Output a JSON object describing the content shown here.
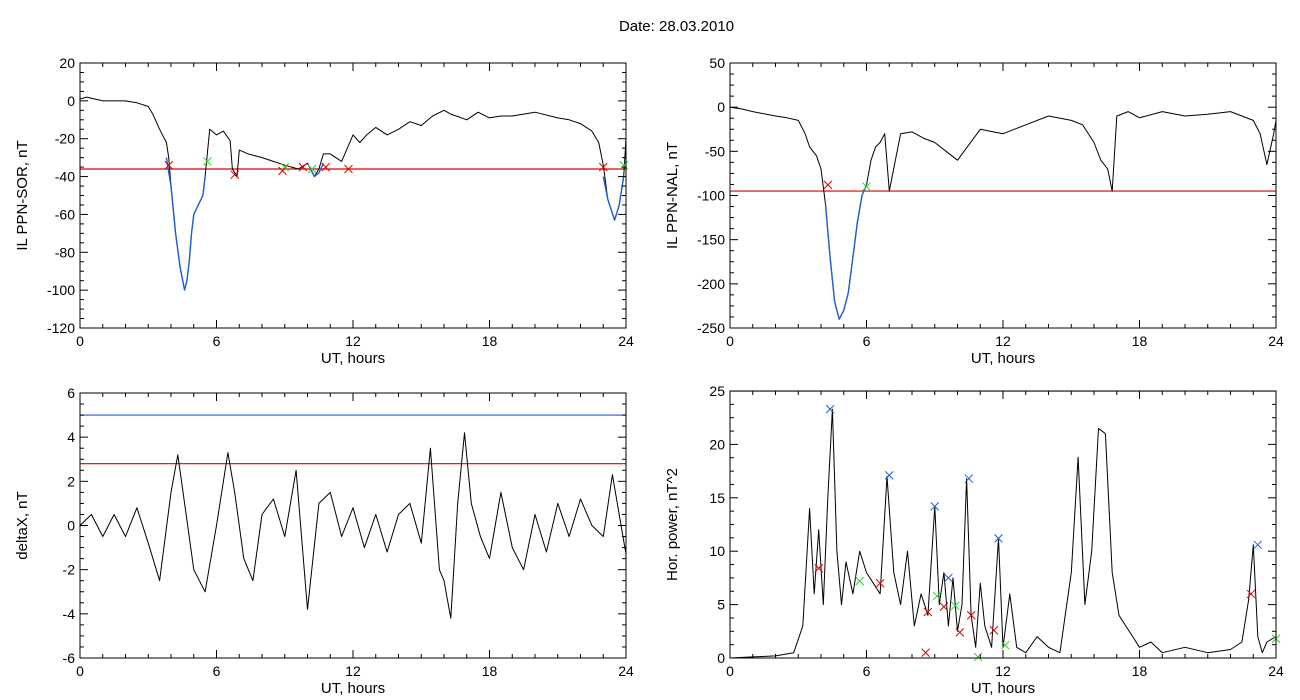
{
  "figure": {
    "title": "Date:  28.03.2010"
  },
  "chart_data": [
    {
      "type": "line",
      "ylabel": "IL PPN-SOR, nT",
      "xlabel": "UT, hours",
      "xlim": [
        0,
        24
      ],
      "ylim": [
        -120,
        20
      ],
      "xticks": [
        "0",
        "6",
        "12",
        "18",
        "24"
      ],
      "yticks": [
        "20",
        "0",
        "-20",
        "-40",
        "-60",
        "-80",
        "-100",
        "-120"
      ],
      "grid": false,
      "series": [
        {
          "color": "#000000",
          "x": [
            0,
            0.3,
            1,
            2,
            2.5,
            3,
            3.2,
            3.5,
            3.8,
            3.9,
            4.0,
            4.2,
            4.4,
            4.6,
            4.7,
            4.8,
            4.9,
            5.0,
            5.2,
            5.4,
            5.5,
            5.7,
            6.0,
            6.3,
            6.6,
            6.7,
            6.9,
            7.0,
            7.4,
            8,
            8.5,
            9,
            9.3,
            9.6,
            10,
            10.3,
            10.5,
            10.7,
            11,
            11.5,
            12,
            12.3,
            12.6,
            13,
            13.5,
            14,
            14.5,
            15,
            15.5,
            16,
            16.3,
            17,
            17.5,
            18,
            18.5,
            19,
            20,
            21,
            21.5,
            22,
            22.5,
            22.8,
            23.0,
            23.2,
            23.5,
            23.7,
            23.9,
            24
          ],
          "y": [
            1,
            2,
            0,
            0,
            -1,
            -3,
            -7,
            -15,
            -22,
            -30,
            -45,
            -70,
            -88,
            -100,
            -95,
            -85,
            -70,
            -60,
            -55,
            -50,
            -40,
            -15,
            -18,
            -16,
            -21,
            -36,
            -40,
            -26,
            -28,
            -30,
            -32,
            -34,
            -35,
            -36,
            -33,
            -40,
            -36,
            -28,
            -28,
            -32,
            -18,
            -22,
            -18,
            -14,
            -18,
            -15,
            -11,
            -13,
            -8,
            -5,
            -7,
            -10,
            -6,
            -9,
            -8,
            -8,
            -6,
            -9,
            -10,
            -12,
            -16,
            -22,
            -34,
            -52,
            -63,
            -55,
            -40,
            -20
          ]
        },
        {
          "color": "#1f5fd0",
          "x": [
            3.8,
            4.0,
            4.2,
            4.4,
            4.6,
            4.7,
            4.8,
            4.9,
            5.0,
            5.2,
            5.4,
            5.5
          ],
          "y": [
            -30,
            -45,
            -70,
            -88,
            -100,
            -95,
            -85,
            -70,
            -60,
            -55,
            -50,
            -40
          ]
        },
        {
          "color": "#1f5fd0",
          "x": [
            10.1,
            10.3,
            10.5,
            10.7
          ],
          "y": [
            -35,
            -40,
            -38,
            -33
          ]
        },
        {
          "color": "#1f5fd0",
          "x": [
            23.0,
            23.2,
            23.5,
            23.7,
            23.9
          ],
          "y": [
            -40,
            -52,
            -63,
            -55,
            -40
          ]
        }
      ],
      "hlines": [
        {
          "y": -36,
          "color": "#e00000"
        }
      ],
      "markers": [
        {
          "x": 3.9,
          "y": -34,
          "color": "#e00000"
        },
        {
          "x": 5.6,
          "y": -32,
          "color": "#33cc33"
        },
        {
          "x": 6.8,
          "y": -39,
          "color": "#e00000"
        },
        {
          "x": 8.9,
          "y": -37,
          "color": "#e00000"
        },
        {
          "x": 9.0,
          "y": -35,
          "color": "#33cc33"
        },
        {
          "x": 9.8,
          "y": -35,
          "color": "#e00000"
        },
        {
          "x": 10.2,
          "y": -36,
          "color": "#33cc33"
        },
        {
          "x": 10.8,
          "y": -35,
          "color": "#e00000"
        },
        {
          "x": 11.8,
          "y": -36,
          "color": "#e00000"
        },
        {
          "x": 23.0,
          "y": -35,
          "color": "#e00000"
        },
        {
          "x": 23.9,
          "y": -34,
          "color": "#33cc33"
        }
      ]
    },
    {
      "type": "line",
      "ylabel": "IL PPN-NAL, nT",
      "xlabel": "UT, hours",
      "xlim": [
        0,
        24
      ],
      "ylim": [
        -250,
        50
      ],
      "xticks": [
        "0",
        "6",
        "12",
        "18",
        "24"
      ],
      "yticks": [
        "50",
        "0",
        "-50",
        "-100",
        "-150",
        "-200",
        "-250"
      ],
      "grid": false,
      "series": [
        {
          "color": "#000000",
          "x": [
            0,
            0.5,
            1,
            2,
            2.5,
            3,
            3.3,
            3.5,
            3.8,
            4.0,
            4.2,
            4.4,
            4.6,
            4.8,
            5.0,
            5.2,
            5.4,
            5.6,
            5.8,
            6.0,
            6.2,
            6.4,
            6.6,
            6.8,
            7.0,
            7.5,
            8,
            8.5,
            9,
            9.5,
            10,
            11,
            12,
            13,
            14,
            15,
            15.5,
            16,
            16.3,
            16.6,
            16.8,
            17.0,
            17.5,
            18,
            19,
            20,
            21,
            22,
            22.5,
            23,
            23.3,
            23.6,
            23.9,
            24
          ],
          "y": [
            0,
            -2,
            -5,
            -10,
            -12,
            -15,
            -30,
            -45,
            -55,
            -70,
            -110,
            -170,
            -220,
            -240,
            -230,
            -210,
            -170,
            -130,
            -100,
            -88,
            -60,
            -45,
            -40,
            -30,
            -95,
            -30,
            -28,
            -35,
            -40,
            -50,
            -60,
            -25,
            -30,
            -20,
            -10,
            -15,
            -20,
            -40,
            -60,
            -70,
            -95,
            -10,
            -5,
            -12,
            -5,
            -10,
            -8,
            -5,
            -10,
            -15,
            -30,
            -65,
            -30,
            -15
          ]
        },
        {
          "color": "#1f5fd0",
          "x": [
            4.2,
            4.4,
            4.6,
            4.8,
            5.0,
            5.2,
            5.4,
            5.6,
            5.8,
            6.0
          ],
          "y": [
            -110,
            -170,
            -220,
            -240,
            -230,
            -210,
            -170,
            -130,
            -100,
            -88
          ]
        }
      ],
      "hlines": [
        {
          "y": -95,
          "color": "#e00000"
        }
      ],
      "markers": [
        {
          "x": 4.3,
          "y": -88,
          "color": "#e00000"
        },
        {
          "x": 6.0,
          "y": -90,
          "color": "#33cc33"
        }
      ]
    },
    {
      "type": "line",
      "ylabel": "deltaX, nT",
      "xlabel": "UT, hours",
      "xlim": [
        0,
        24
      ],
      "ylim": [
        -6,
        6
      ],
      "xticks": [
        "0",
        "6",
        "12",
        "18",
        "24"
      ],
      "yticks": [
        "6",
        "4",
        "2",
        "0",
        "-2",
        "-4",
        "-6"
      ],
      "grid": false,
      "series": [
        {
          "color": "#000000",
          "x": [
            0,
            0.5,
            1,
            1.5,
            2,
            2.5,
            3,
            3.5,
            4.0,
            4.3,
            4.6,
            5.0,
            5.5,
            6.0,
            6.5,
            6.8,
            7.2,
            7.6,
            8.0,
            8.5,
            9.0,
            9.5,
            10.0,
            10.5,
            11.0,
            11.5,
            12.0,
            12.5,
            13.0,
            13.5,
            14.0,
            14.5,
            15.0,
            15.4,
            15.8,
            16.0,
            16.3,
            16.6,
            16.9,
            17.2,
            17.6,
            18.0,
            18.5,
            19.0,
            19.5,
            20.0,
            20.5,
            21.0,
            21.5,
            22.0,
            22.5,
            23.0,
            23.4,
            23.7,
            24
          ],
          "y": [
            0,
            0.5,
            -0.5,
            0.5,
            -0.5,
            0.8,
            -0.8,
            -2.5,
            1.5,
            3.2,
            1.0,
            -2.0,
            -3.0,
            0,
            3.3,
            1.5,
            -1.5,
            -2.5,
            0.5,
            1.2,
            -0.5,
            2.5,
            -3.8,
            1.0,
            1.5,
            -0.5,
            0.8,
            -1.0,
            0.5,
            -1.2,
            0.5,
            1.0,
            -0.8,
            3.5,
            -2.0,
            -2.5,
            -4.2,
            1.0,
            4.2,
            1.0,
            -0.5,
            -1.5,
            1.5,
            -1.0,
            -2.0,
            0.5,
            -1.2,
            1.0,
            -0.5,
            1.2,
            0,
            -0.5,
            2.3,
            0.5,
            -1.3
          ]
        }
      ],
      "hlines": [
        {
          "y": 5.0,
          "color": "#1f5fd0"
        },
        {
          "y": 2.8,
          "color": "#e00000"
        }
      ],
      "markers": []
    },
    {
      "type": "line",
      "ylabel": "Hor. power, nT^2",
      "xlabel": "UT, hours",
      "xlim": [
        0,
        24
      ],
      "ylim": [
        0,
        25
      ],
      "xticks": [
        "0",
        "6",
        "12",
        "18",
        "24"
      ],
      "yticks": [
        "25",
        "20",
        "15",
        "10",
        "5",
        "0"
      ],
      "grid": false,
      "series": [
        {
          "color": "#000000",
          "x": [
            0,
            1,
            2,
            2.8,
            3.2,
            3.5,
            3.7,
            3.9,
            4.1,
            4.3,
            4.5,
            4.7,
            4.9,
            5.1,
            5.4,
            5.7,
            6.0,
            6.3,
            6.6,
            6.9,
            7.2,
            7.5,
            7.8,
            8.1,
            8.4,
            8.7,
            9.0,
            9.2,
            9.4,
            9.6,
            9.8,
            10.0,
            10.2,
            10.4,
            10.6,
            10.8,
            11.0,
            11.2,
            11.5,
            11.8,
            12.0,
            12.3,
            12.6,
            13.0,
            13.5,
            14.0,
            14.5,
            15.0,
            15.3,
            15.6,
            15.9,
            16.2,
            16.5,
            16.8,
            17.1,
            17.4,
            17.7,
            18.0,
            18.5,
            19,
            20,
            21,
            22,
            22.5,
            22.8,
            23.0,
            23.2,
            23.4,
            23.6,
            24
          ],
          "y": [
            0,
            0.1,
            0.2,
            0.5,
            3.0,
            14.0,
            6.0,
            12.0,
            5.0,
            15.0,
            23.3,
            10.0,
            5.0,
            9.0,
            6.0,
            10.0,
            8.0,
            7.0,
            6.0,
            17.0,
            8.0,
            5.0,
            10.0,
            3.0,
            6.0,
            4.0,
            14.2,
            5.0,
            8.0,
            3.0,
            7.5,
            2.5,
            5.0,
            16.8,
            4.0,
            1.0,
            7.0,
            3.0,
            1.0,
            11.2,
            1.0,
            6.0,
            1.0,
            0.5,
            2.0,
            1.0,
            0.5,
            8.0,
            18.8,
            5.0,
            10.0,
            21.5,
            21.0,
            8.0,
            4.0,
            3.0,
            2.0,
            1.0,
            1.5,
            0.5,
            1.0,
            0.5,
            0.8,
            1.5,
            5.5,
            10.6,
            2.0,
            0.5,
            1.5,
            2.0
          ]
        }
      ],
      "hlines": [
        {
          "y": 25,
          "color": "#e00000"
        }
      ],
      "markers": [
        {
          "x": 4.4,
          "y": 23.3,
          "color": "#1f5fd0"
        },
        {
          "x": 7.0,
          "y": 17.1,
          "color": "#1f5fd0"
        },
        {
          "x": 9.0,
          "y": 14.2,
          "color": "#1f5fd0"
        },
        {
          "x": 9.6,
          "y": 7.5,
          "color": "#1f5fd0"
        },
        {
          "x": 10.5,
          "y": 16.8,
          "color": "#1f5fd0"
        },
        {
          "x": 11.8,
          "y": 11.2,
          "color": "#1f5fd0"
        },
        {
          "x": 23.2,
          "y": 10.6,
          "color": "#1f5fd0"
        },
        {
          "x": 3.9,
          "y": 8.4,
          "color": "#e00000"
        },
        {
          "x": 6.6,
          "y": 7.0,
          "color": "#e00000"
        },
        {
          "x": 8.7,
          "y": 4.3,
          "color": "#e00000"
        },
        {
          "x": 9.4,
          "y": 4.8,
          "color": "#e00000"
        },
        {
          "x": 10.1,
          "y": 2.4,
          "color": "#e00000"
        },
        {
          "x": 10.6,
          "y": 4.0,
          "color": "#e00000"
        },
        {
          "x": 11.6,
          "y": 2.6,
          "color": "#e00000"
        },
        {
          "x": 22.9,
          "y": 6.0,
          "color": "#e00000"
        },
        {
          "x": 5.7,
          "y": 7.2,
          "color": "#33cc33"
        },
        {
          "x": 9.1,
          "y": 5.8,
          "color": "#33cc33"
        },
        {
          "x": 9.9,
          "y": 4.9,
          "color": "#33cc33"
        },
        {
          "x": 12.1,
          "y": 1.2,
          "color": "#33cc33"
        },
        {
          "x": 10.9,
          "y": 0.1,
          "color": "#33cc33"
        },
        {
          "x": 8.6,
          "y": 0.5,
          "color": "#e00000"
        },
        {
          "x": 24.0,
          "y": 1.8,
          "color": "#33cc33"
        }
      ]
    }
  ]
}
